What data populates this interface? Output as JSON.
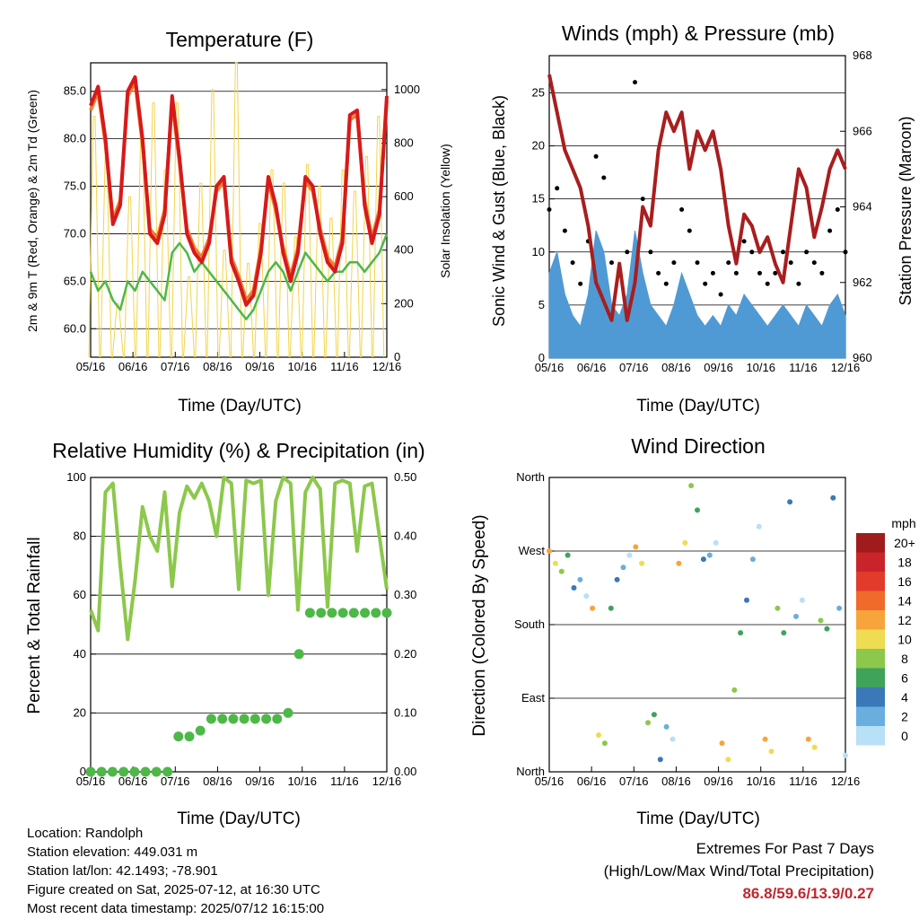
{
  "colors": {
    "temp_2m": "#d7191c",
    "temp_9m": "#f07f2c",
    "dewpoint": "#4db848",
    "solar": "#f2d44a",
    "wind": "#4f9ad4",
    "gust": "#000000",
    "pressure": "#a81e1e",
    "rh": "#8cc84b",
    "precip": "#4db848"
  },
  "x_ticks": [
    "05/16",
    "06/16",
    "07/16",
    "08/16",
    "09/16",
    "10/16",
    "11/16",
    "12/16"
  ],
  "x_label": "Time (Day/UTC)",
  "charts": {
    "temperature": {
      "title": "Temperature (F)",
      "ylabel": "2m & 9m T (Red, Orange) & 2m Td (Green)",
      "y2label": "Solar Insolation (Yellow)",
      "yticks": [
        "60.0",
        "65.0",
        "70.0",
        "75.0",
        "80.0",
        "85.0"
      ],
      "y2ticks": [
        "0",
        "200",
        "400",
        "600",
        "800",
        "1000"
      ]
    },
    "winds": {
      "title": "Winds (mph) & Pressure (mb)",
      "ylabel": "Sonic Wind & Gust (Blue, Black)",
      "y2label": "Station Pressure (Maroon)",
      "yticks": [
        "0",
        "5",
        "10",
        "15",
        "20",
        "25"
      ],
      "y2ticks": [
        "960",
        "962",
        "964",
        "966",
        "968"
      ]
    },
    "humidity": {
      "title": "Relative Humidity (%) & Precipitation (in)",
      "ylabel": "Percent & Total Rainfall",
      "yticks": [
        "0",
        "20",
        "40",
        "60",
        "80",
        "100"
      ],
      "y2ticks": [
        "0.00",
        "0.10",
        "0.20",
        "0.30",
        "0.40",
        "0.50"
      ]
    },
    "direction": {
      "title": "Wind Direction",
      "ylabel": "Direction (Colored By Speed)",
      "yticks": [
        "North",
        "East",
        "South",
        "West",
        "North"
      ],
      "legend_unit": "mph",
      "legend_labels": [
        "20+",
        "18",
        "16",
        "14",
        "12",
        "10",
        "8",
        "6",
        "4",
        "2",
        "0"
      ],
      "legend_colors": [
        "#a01c1c",
        "#c9242a",
        "#e23b2c",
        "#f06a2c",
        "#f7a43a",
        "#eedc52",
        "#8cc84b",
        "#3fa35a",
        "#3a78b8",
        "#6aaedf",
        "#b8e0f7"
      ]
    }
  },
  "chart_data": [
    {
      "type": "line",
      "title": "Temperature (F)",
      "ylim": [
        57,
        88
      ],
      "y2lim": [
        0,
        1100
      ],
      "series": [
        {
          "name": "2m T",
          "values": [
            83.5,
            85.5,
            80,
            71,
            73,
            85,
            86.5,
            80,
            70,
            69,
            72,
            84.5,
            78,
            70,
            68,
            67,
            69,
            75,
            76,
            67,
            65,
            62.5,
            63.5,
            68,
            76,
            73,
            68,
            65,
            68,
            76,
            75,
            70,
            67,
            66,
            69,
            82.5,
            83,
            73,
            69,
            72,
            84.5
          ]
        },
        {
          "name": "9m T",
          "values": [
            83,
            85,
            79.5,
            71.5,
            73.5,
            84.5,
            86,
            79.5,
            70.5,
            69.5,
            72.5,
            84,
            77.5,
            70.5,
            68.5,
            67.5,
            69.5,
            74.5,
            75.5,
            67.5,
            65.5,
            63,
            64,
            68.5,
            75.5,
            72.5,
            68.5,
            65.5,
            68.5,
            75.5,
            74.5,
            70.5,
            67.5,
            66.5,
            69.5,
            82,
            82.5,
            73.5,
            69.5,
            72.5,
            84
          ]
        },
        {
          "name": "2m Td",
          "values": [
            66,
            64,
            65,
            63,
            62,
            65,
            64,
            66,
            65,
            64,
            63,
            68,
            69,
            68,
            66,
            67,
            66,
            65,
            64,
            63,
            62,
            61,
            62,
            64,
            66,
            67,
            66,
            64,
            66,
            68,
            67,
            66,
            65,
            66,
            66,
            67,
            67,
            66,
            67,
            68,
            70
          ]
        },
        {
          "name": "Solar Insolation",
          "values": [
            900,
            750,
            200,
            600,
            850,
            950,
            700,
            950,
            300,
            650,
            1000,
            400,
            1100,
            350,
            500,
            700,
            650,
            450,
            720,
            640,
            520,
            700,
            620,
            750,
            900
          ]
        }
      ]
    },
    {
      "type": "line",
      "title": "Winds (mph) & Pressure (mb)",
      "ylim": [
        0,
        28.5
      ],
      "y2lim": [
        960,
        968
      ],
      "series": [
        {
          "name": "Pressure",
          "values": [
            967.5,
            966.5,
            965.5,
            965,
            964.5,
            963.5,
            962,
            961.5,
            961,
            962.5,
            961,
            962,
            964,
            963.5,
            965.5,
            966.5,
            966,
            966.5,
            965,
            966,
            965.5,
            966,
            965,
            963.5,
            962.5,
            963.8,
            963.5,
            962.8,
            963.2,
            962.5,
            962,
            963.5,
            965,
            964.5,
            963.2,
            964,
            965,
            965.5,
            965
          ]
        },
        {
          "name": "Wind",
          "values": [
            8,
            10,
            6,
            4,
            3,
            6,
            12,
            10,
            5,
            4,
            6,
            12,
            8,
            5,
            4,
            3,
            5,
            8,
            6,
            4,
            3,
            4,
            3,
            5,
            4,
            6,
            5,
            4,
            3,
            4,
            5,
            4,
            3,
            5,
            4,
            3,
            5,
            6,
            4
          ]
        },
        {
          "name": "Gust",
          "values": [
            14,
            16,
            12,
            9,
            7,
            11,
            19,
            17,
            9,
            8,
            10,
            26,
            15,
            10,
            8,
            7,
            9,
            14,
            12,
            9,
            7,
            8,
            6,
            9,
            8,
            11,
            10,
            8,
            7,
            8,
            10,
            9,
            7,
            10,
            9,
            8,
            12,
            14,
            10
          ]
        }
      ]
    },
    {
      "type": "line",
      "title": "Relative Humidity (%) & Precipitation (in)",
      "ylim": [
        0,
        100
      ],
      "y2lim": [
        0,
        0.5
      ],
      "series": [
        {
          "name": "Relative Humidity",
          "values": [
            55,
            48,
            95,
            98,
            70,
            45,
            65,
            90,
            80,
            75,
            95,
            63,
            88,
            97,
            93,
            98,
            92,
            80,
            100,
            98,
            62,
            99,
            98,
            99,
            60,
            92,
            100,
            98,
            55,
            95,
            100,
            96,
            56,
            98,
            99,
            98,
            75,
            97,
            98,
            80,
            62
          ]
        },
        {
          "name": "Total Precipitation",
          "values": [
            0,
            0,
            0,
            0,
            0,
            0,
            0,
            0,
            0.06,
            0.06,
            0.07,
            0.09,
            0.09,
            0.09,
            0.09,
            0.09,
            0.09,
            0.09,
            0.1,
            0.2,
            0.27,
            0.27,
            0.27,
            0.27,
            0.27,
            0.27,
            0.27,
            0.27
          ]
        }
      ]
    },
    {
      "type": "scatter",
      "title": "Wind Direction",
      "ylim": [
        0,
        360
      ],
      "series": [
        {
          "name": "Direction",
          "values": [
            270,
            255,
            245,
            265,
            225,
            235,
            215,
            200,
            45,
            35,
            200,
            235,
            250,
            265,
            275,
            255,
            60,
            70,
            15,
            55,
            40,
            255,
            280,
            350,
            320,
            260,
            265,
            280,
            35,
            15,
            100,
            170,
            210,
            260,
            300,
            40,
            25,
            200,
            170,
            330,
            190,
            210,
            40,
            30,
            185,
            175,
            335,
            200,
            20
          ]
        }
      ]
    }
  ],
  "info": {
    "location": "Location: Randolph",
    "elevation": "Station elevation: 449.031 m",
    "latlon": "Station lat/lon: 42.1493; -78.901",
    "created": "Figure created on Sat, 2025-07-12, at 16:30 UTC",
    "recent": "Most recent data timestamp: 2025/07/12 16:15:00"
  },
  "extremes": {
    "title": "Extremes For Past 7 Days",
    "subtitle": "(High/Low/Max Wind/Total Precipitation)",
    "values": "86.8/59.6/13.9/0.27"
  }
}
